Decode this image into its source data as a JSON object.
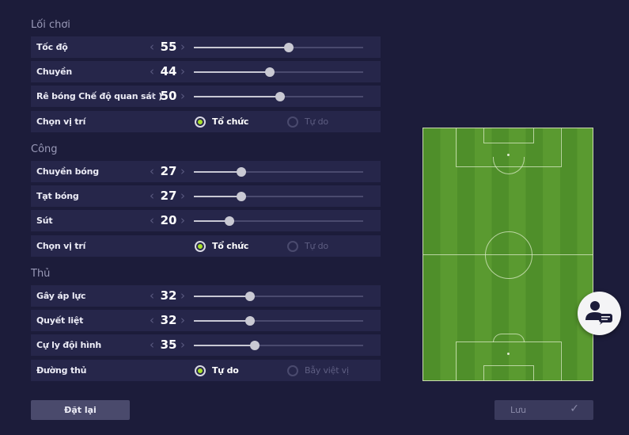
{
  "sections": [
    {
      "title": "Lối chơi",
      "rows": [
        {
          "type": "slider",
          "label": "Tốc độ",
          "value": 55,
          "fraction": 0.56
        },
        {
          "type": "slider",
          "label": "Chuyền",
          "value": 44,
          "fraction": 0.45
        },
        {
          "type": "slider",
          "label": "Rê bóng Chế độ quan sát )",
          "value": 50,
          "fraction": 0.51
        },
        {
          "type": "radio",
          "label": "Chọn vị trí",
          "options": [
            "Tổ chức",
            "Tự do"
          ],
          "selected": 0
        }
      ]
    },
    {
      "title": "Công",
      "rows": [
        {
          "type": "slider",
          "label": "Chuyền bóng",
          "value": 27,
          "fraction": 0.28
        },
        {
          "type": "slider",
          "label": "Tạt bóng",
          "value": 27,
          "fraction": 0.28
        },
        {
          "type": "slider",
          "label": "Sút",
          "value": 20,
          "fraction": 0.21
        },
        {
          "type": "radio",
          "label": "Chọn vị trí",
          "options": [
            "Tổ chức",
            "Tự do"
          ],
          "selected": 0
        }
      ]
    },
    {
      "title": "Thủ",
      "rows": [
        {
          "type": "slider",
          "label": "Gây áp lực",
          "value": 32,
          "fraction": 0.33
        },
        {
          "type": "slider",
          "label": "Quyết liệt",
          "value": 32,
          "fraction": 0.33
        },
        {
          "type": "slider",
          "label": "Cự ly đội hình",
          "value": 35,
          "fraction": 0.36
        },
        {
          "type": "radio",
          "label": "Đường thủ",
          "options": [
            "Tự do",
            "Bẫy việt vị"
          ],
          "selected": 0
        }
      ]
    }
  ],
  "buttons": {
    "reset": "Đặt lại",
    "save": "Lưu"
  },
  "colors": {
    "accent": "#a8e02a",
    "pitch": "#4f8f2a",
    "background": "#1c1c3a"
  },
  "icons": {
    "fab": "coach-chat-icon",
    "save": "check-icon"
  }
}
